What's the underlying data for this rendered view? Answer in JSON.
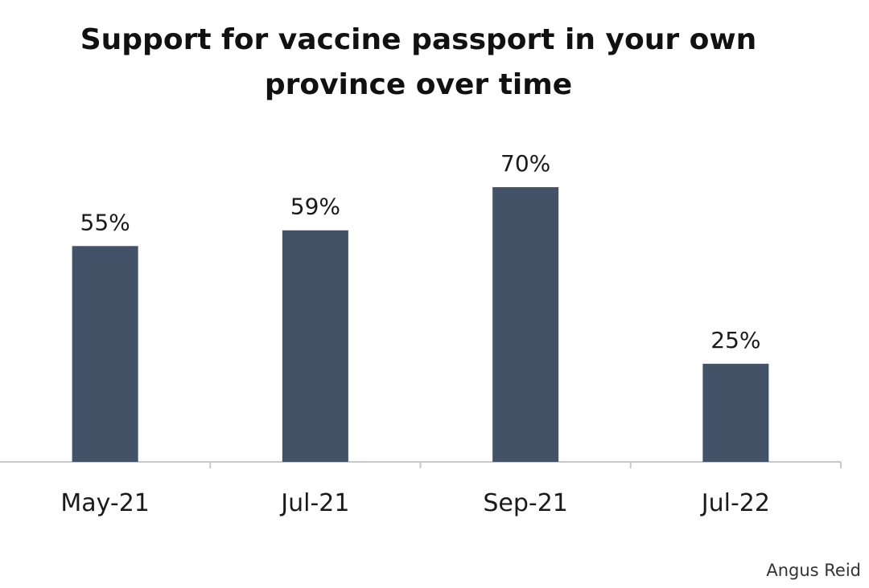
{
  "chart_data": {
    "type": "bar",
    "title": "Support for vaccine passport  in your own\nprovince over time",
    "categories": [
      "May-21",
      "Jul-21",
      "Sep-21",
      "Jul-22"
    ],
    "series": [
      {
        "values": [
          55,
          59,
          70,
          25
        ],
        "labels": [
          "55%",
          "59%",
          "70%",
          "25%"
        ],
        "color": "#445268"
      }
    ],
    "xlabel": "",
    "ylabel": "",
    "ylim": [
      0,
      70
    ],
    "grid": false,
    "legend": "none"
  },
  "source": "Angus Reid",
  "colors": {
    "bar": "#445268",
    "axis": "#c8c8c8",
    "text": "#1a1a1a"
  }
}
